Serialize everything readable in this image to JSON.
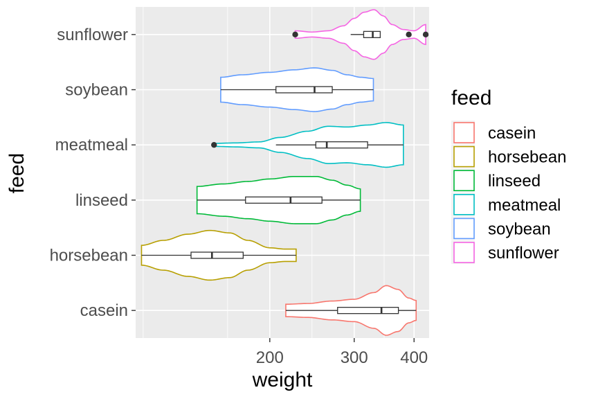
{
  "chart_data": {
    "type": "violin",
    "xlabel": "weight",
    "ylabel": "feed",
    "x_scale": "log10",
    "xlim": [
      105,
      430
    ],
    "x_ticks": [
      200,
      300,
      400
    ],
    "grid": true,
    "legend_title": "feed",
    "legend_position": "right",
    "categories": [
      "casein",
      "horsebean",
      "linseed",
      "meatmeal",
      "soybean",
      "sunflower"
    ],
    "series": [
      {
        "name": "casein",
        "color": "#F8766D",
        "min": 216,
        "q1": 277,
        "median": 342,
        "q3": 371,
        "max": 404,
        "violin_range": [
          216,
          404
        ],
        "outliers": [],
        "density": [
          [
            216,
            0.25
          ],
          [
            240,
            0.28
          ],
          [
            270,
            0.38
          ],
          [
            300,
            0.45
          ],
          [
            330,
            0.72
          ],
          [
            350,
            1.0
          ],
          [
            370,
            0.85
          ],
          [
            390,
            0.5
          ],
          [
            404,
            0.4
          ]
        ]
      },
      {
        "name": "horsebean",
        "color": "#B79F00",
        "min": 108,
        "q1": 137,
        "median": 151.5,
        "q3": 176,
        "max": 227,
        "violin_range": [
          108,
          227
        ],
        "outliers": [],
        "density": [
          [
            108,
            0.4
          ],
          [
            120,
            0.6
          ],
          [
            135,
            0.85
          ],
          [
            150,
            1.0
          ],
          [
            165,
            0.9
          ],
          [
            180,
            0.6
          ],
          [
            200,
            0.3
          ],
          [
            215,
            0.25
          ],
          [
            227,
            0.25
          ]
        ]
      },
      {
        "name": "linseed",
        "color": "#00BA38",
        "min": 141,
        "q1": 178,
        "median": 221,
        "q3": 257,
        "max": 309,
        "violin_range": [
          141,
          309
        ],
        "outliers": [],
        "density": [
          [
            141,
            0.55
          ],
          [
            160,
            0.65
          ],
          [
            180,
            0.75
          ],
          [
            200,
            0.85
          ],
          [
            225,
            0.95
          ],
          [
            250,
            0.95
          ],
          [
            270,
            0.8
          ],
          [
            290,
            0.6
          ],
          [
            309,
            0.45
          ]
        ]
      },
      {
        "name": "meatmeal",
        "color": "#00BFC4",
        "min": 206,
        "q1": 249.5,
        "median": 263,
        "q3": 320,
        "max": 380,
        "violin_range": [
          153,
          380
        ],
        "outliers": [
          153
        ],
        "density": [
          [
            153,
            0.06
          ],
          [
            170,
            0.08
          ],
          [
            190,
            0.12
          ],
          [
            210,
            0.3
          ],
          [
            240,
            0.55
          ],
          [
            265,
            0.75
          ],
          [
            290,
            0.72
          ],
          [
            320,
            0.8
          ],
          [
            350,
            0.9
          ],
          [
            380,
            0.8
          ]
        ]
      },
      {
        "name": "soybean",
        "color": "#619CFF",
        "min": 158,
        "q1": 206,
        "median": 248,
        "q3": 270,
        "max": 329,
        "violin_range": [
          158,
          329
        ],
        "outliers": [],
        "density": [
          [
            158,
            0.5
          ],
          [
            175,
            0.6
          ],
          [
            200,
            0.7
          ],
          [
            225,
            0.8
          ],
          [
            248,
            0.88
          ],
          [
            270,
            0.78
          ],
          [
            290,
            0.6
          ],
          [
            310,
            0.5
          ],
          [
            329,
            0.45
          ]
        ]
      },
      {
        "name": "sunflower",
        "color": "#F564E3",
        "min": 295,
        "q1": 314,
        "median": 328,
        "q3": 340,
        "max": 340,
        "violin_range": [
          226,
          423
        ],
        "outliers": [
          226,
          390,
          423
        ],
        "density": [
          [
            226,
            0.15
          ],
          [
            245,
            0.1
          ],
          [
            265,
            0.15
          ],
          [
            285,
            0.35
          ],
          [
            300,
            0.65
          ],
          [
            315,
            0.9
          ],
          [
            330,
            1.0
          ],
          [
            345,
            0.75
          ],
          [
            360,
            0.4
          ],
          [
            380,
            0.2
          ],
          [
            400,
            0.15
          ],
          [
            423,
            0.4
          ]
        ]
      }
    ]
  }
}
